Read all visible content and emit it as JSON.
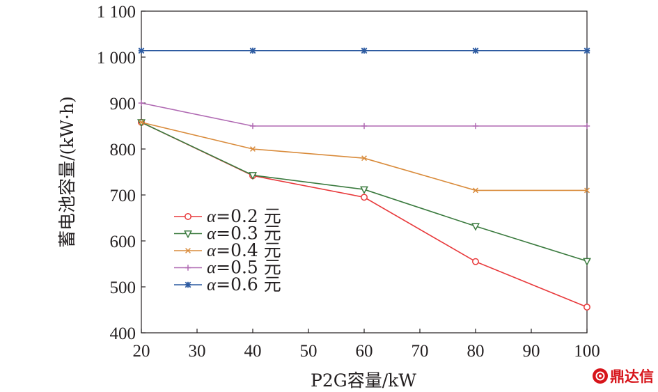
{
  "chart_data": {
    "type": "line",
    "title": "",
    "xlabel": "P2G容量/kW",
    "ylabel": "蓄电池容量/(kW·h)",
    "x": [
      20,
      40,
      60,
      80,
      100
    ],
    "xlim": [
      20,
      100
    ],
    "ylim": [
      400,
      1100
    ],
    "xticks": [
      20,
      30,
      40,
      50,
      60,
      70,
      80,
      90,
      100
    ],
    "yticks": [
      400,
      500,
      600,
      700,
      800,
      900,
      1000,
      1100
    ],
    "ytick_labels": [
      "400",
      "500",
      "600",
      "700",
      "800",
      "900",
      "1 000",
      "1 100"
    ],
    "grid": false,
    "legend_position": "lower-left",
    "series": [
      {
        "name": "α=0.2 元",
        "prefix": "α",
        "suffix": "=0.2 元",
        "color": "#e8393b",
        "marker": "circle",
        "values": [
          858,
          742,
          695,
          555,
          456
        ]
      },
      {
        "name": "α=0.3 元",
        "prefix": "α",
        "suffix": "=0.3 元",
        "color": "#3a7a3e",
        "marker": "triangle-down",
        "values": [
          858,
          743,
          712,
          632,
          556
        ]
      },
      {
        "name": "α=0.4 元",
        "prefix": "α",
        "suffix": "=0.4 元",
        "color": "#d98b3b",
        "marker": "x",
        "values": [
          858,
          800,
          780,
          710,
          710
        ]
      },
      {
        "name": "α=0.5 元",
        "prefix": "α",
        "suffix": "=0.5 元",
        "color": "#b06ab3",
        "marker": "plus",
        "values": [
          900,
          850,
          850,
          850,
          850
        ]
      },
      {
        "name": "α=0.6 元",
        "prefix": "α",
        "suffix": "=0.6 元",
        "color": "#2c5aa0",
        "marker": "asterisk",
        "values": [
          1014,
          1014,
          1014,
          1014,
          1014
        ]
      }
    ]
  },
  "watermark": {
    "text": "鼎达信",
    "logo_icon": "gear-logo-icon",
    "color": "#d7141a"
  }
}
